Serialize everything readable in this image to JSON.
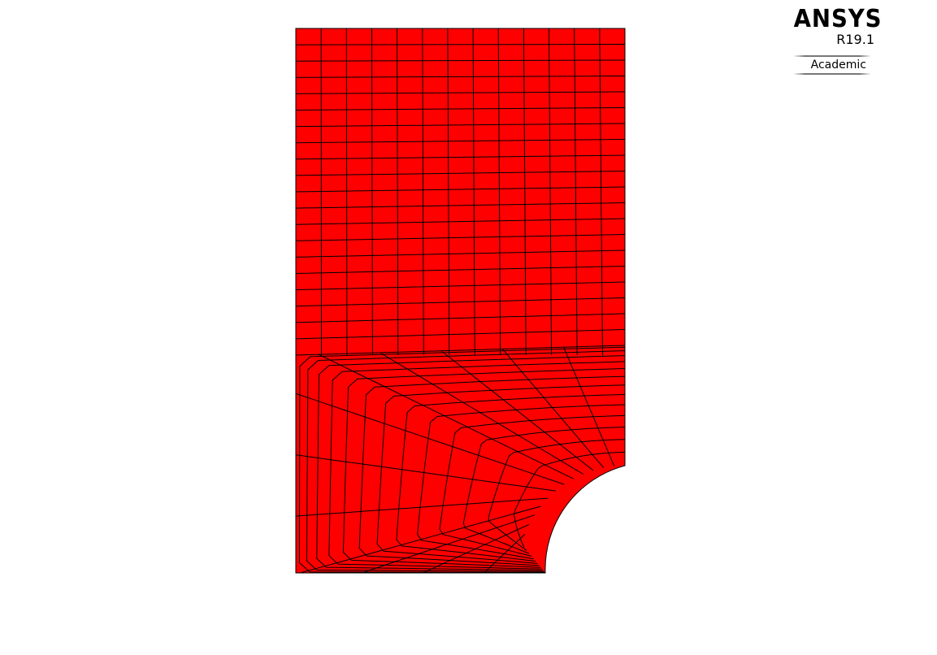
{
  "logo": {
    "brand": "ANSYS",
    "release": "R19.1",
    "edition": "Academic"
  },
  "mesh": {
    "fill_color": "#ff0000",
    "line_color": "#000000",
    "background": "#ffffff"
  }
}
